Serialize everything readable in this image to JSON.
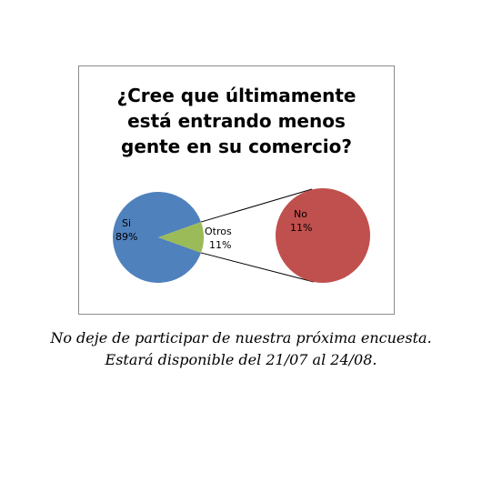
{
  "chart_data": {
    "type": "pie",
    "subtype": "pie-of-pie",
    "title_lines": [
      "¿Cree que últimamente",
      "está entrando menos",
      "gente en su comercio?"
    ],
    "slices": [
      {
        "label": "Si",
        "value": 89,
        "value_label": "89%",
        "color": "#4f81bd"
      },
      {
        "label": "Otros",
        "value": 11,
        "value_label": "11%",
        "color": "#9bbb59"
      }
    ],
    "secondary_pie": {
      "slices": [
        {
          "label": "No",
          "value": 11,
          "value_label": "11%",
          "color": "#c0504d"
        }
      ]
    },
    "legend": "none"
  },
  "footer": {
    "lines": [
      "No deje de participar de nuestra próxima encuesta.",
      "Estará disponible del 21/07 al 24/08."
    ]
  }
}
